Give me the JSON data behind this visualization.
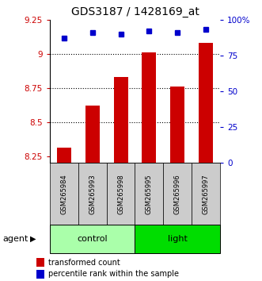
{
  "title": "GDS3187 / 1428169_at",
  "samples": [
    "GSM265984",
    "GSM265993",
    "GSM265998",
    "GSM265995",
    "GSM265996",
    "GSM265997"
  ],
  "bar_values": [
    8.31,
    8.62,
    8.83,
    9.01,
    8.76,
    9.08
  ],
  "percentile_values": [
    87,
    91,
    90,
    92,
    91,
    93
  ],
  "ylim_left": [
    8.2,
    9.25
  ],
  "ylim_right": [
    0,
    100
  ],
  "yticks_left": [
    8.25,
    8.5,
    8.75,
    9.0,
    9.25
  ],
  "yticks_right": [
    0,
    25,
    50,
    75,
    100
  ],
  "ytick_labels_left": [
    "8.25",
    "8.5",
    "8.75",
    "9",
    "9.25"
  ],
  "ytick_labels_right": [
    "0",
    "25",
    "50",
    "75",
    "100%"
  ],
  "hlines": [
    8.5,
    8.75,
    9.0
  ],
  "groups": [
    {
      "name": "control",
      "indices": [
        0,
        1,
        2
      ],
      "color": "#aaffaa"
    },
    {
      "name": "light",
      "indices": [
        3,
        4,
        5
      ],
      "color": "#00dd00"
    }
  ],
  "agent_label": "agent",
  "bar_color": "#cc0000",
  "dot_color": "#0000cc",
  "bar_width": 0.5,
  "title_fontsize": 10,
  "tick_fontsize": 7.5,
  "label_fontsize": 8,
  "legend_fontsize": 7,
  "background_color": "#ffffff",
  "plot_bg_color": "#ffffff",
  "sample_bg_color": "#cccccc",
  "group_label_fontsize": 8
}
